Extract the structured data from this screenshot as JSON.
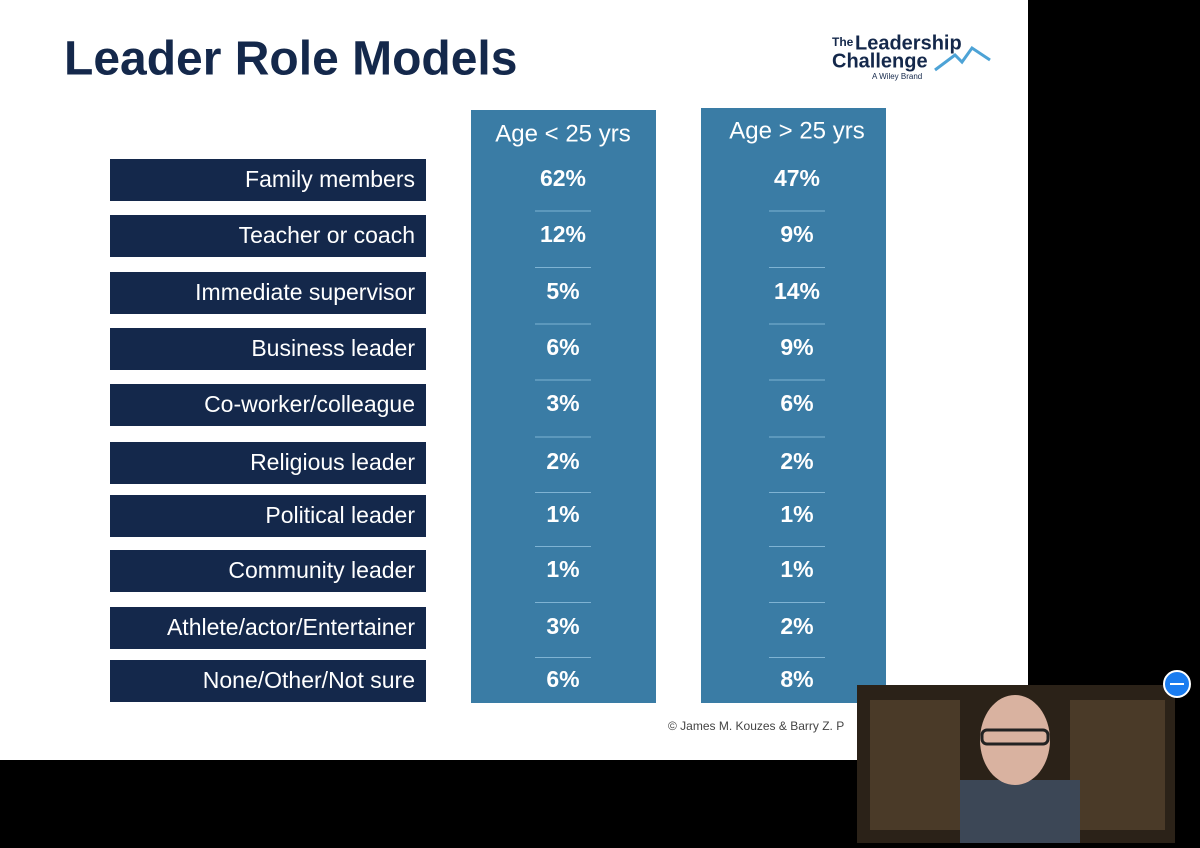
{
  "slide": {
    "title": "Leader Role Models",
    "logo": {
      "the": "The",
      "line1": "Leadership",
      "line2": "Challenge",
      "brand": "A Wiley Brand"
    },
    "columns": [
      "Age < 25  yrs",
      "Age > 25 yrs"
    ],
    "rows": [
      {
        "label": "Family members",
        "values": [
          "62%",
          "47%"
        ]
      },
      {
        "label": "Teacher or coach",
        "values": [
          "12%",
          "9%"
        ]
      },
      {
        "label": "Immediate supervisor",
        "values": [
          "5%",
          "14%"
        ]
      },
      {
        "label": "Business leader",
        "values": [
          "6%",
          "9%"
        ]
      },
      {
        "label": "Co-worker/colleague",
        "values": [
          "3%",
          "6%"
        ]
      },
      {
        "label": "Religious leader",
        "values": [
          "2%",
          "2%"
        ]
      },
      {
        "label": "Political leader",
        "values": [
          "1%",
          "1%"
        ]
      },
      {
        "label": "Community leader",
        "values": [
          "1%",
          "1%"
        ]
      },
      {
        "label": "Athlete/actor/Entertainer",
        "values": [
          "3%",
          "2%"
        ]
      },
      {
        "label": "None/Other/Not sure",
        "values": [
          "6%",
          "8%"
        ]
      }
    ],
    "copyright": "© James M. Kouzes & Barry Z. P"
  }
}
